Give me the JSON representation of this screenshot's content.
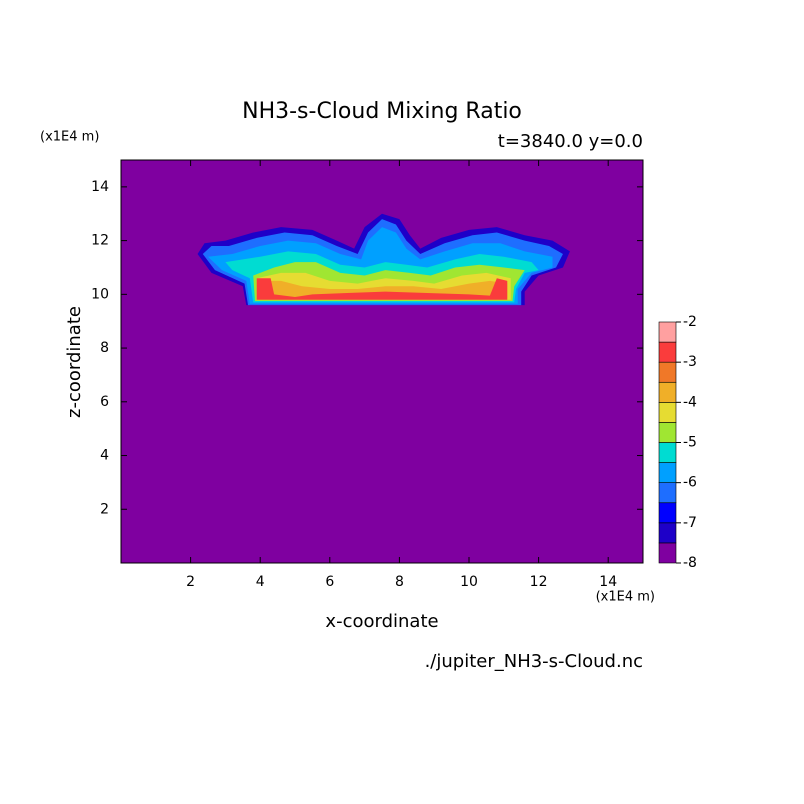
{
  "chart_data": {
    "type": "contour",
    "title": "NH3-s-Cloud Mixing Ratio",
    "subtitle": "t=3840.0 y=0.0",
    "y_unit": "(x1E4 m)",
    "x_unit": "(x1E4 m)",
    "x_label": "x-coordinate",
    "y_label": "z-coordinate",
    "footer": "./jupiter_NH3-s-Cloud.nc",
    "xlim": [
      0,
      15
    ],
    "ylim": [
      0,
      15
    ],
    "xticks": [
      2,
      4,
      6,
      8,
      10,
      12,
      14
    ],
    "yticks": [
      2,
      4,
      6,
      8,
      10,
      12,
      14
    ],
    "levels": [
      -8,
      -7.5,
      -7,
      -6.5,
      -6,
      -5.5,
      -5,
      -4.5,
      -4,
      -3.5,
      -3,
      -2.5,
      -2
    ],
    "colors": [
      "#7f00a0",
      "#1e00c8",
      "#0000ff",
      "#1e6eff",
      "#00a0ff",
      "#00dcd2",
      "#a0e632",
      "#e6dc32",
      "#f0af28",
      "#f07828",
      "#fa3c3c",
      "#ffa0a0"
    ],
    "colorbar_ticks": [
      -8,
      -7,
      -6,
      -5,
      -4,
      -3,
      -2
    ],
    "contours": [
      {
        "level": -7.5,
        "x": [
          3.6,
          3.5,
          2.6,
          2.2,
          2.4,
          3.0,
          3.8,
          4.6,
          5.5,
          6.2,
          6.7,
          7.0,
          7.5,
          8.0,
          8.3,
          8.6,
          9.2,
          10.0,
          10.8,
          11.6,
          12.4,
          12.9,
          12.7,
          12.0,
          11.6,
          11.6
        ],
        "z": [
          9.6,
          10.3,
          10.8,
          11.5,
          11.9,
          12.0,
          12.3,
          12.5,
          12.4,
          12.0,
          11.7,
          12.5,
          13.0,
          12.8,
          12.2,
          11.7,
          12.1,
          12.4,
          12.5,
          12.2,
          12.0,
          11.6,
          11.0,
          10.7,
          10.1,
          9.6
        ]
      },
      {
        "level": -6.5,
        "x": [
          3.65,
          3.55,
          2.7,
          2.35,
          2.6,
          3.1,
          3.9,
          4.7,
          5.5,
          6.2,
          6.8,
          7.1,
          7.5,
          7.9,
          8.2,
          8.6,
          9.3,
          10.1,
          10.8,
          11.6,
          12.3,
          12.7,
          12.5,
          11.8,
          11.5,
          11.5
        ],
        "z": [
          9.6,
          10.4,
          10.9,
          11.5,
          11.8,
          11.8,
          12.1,
          12.3,
          12.2,
          11.8,
          11.5,
          12.3,
          12.8,
          12.6,
          12.0,
          11.5,
          11.9,
          12.2,
          12.3,
          12.0,
          11.8,
          11.5,
          11.0,
          10.7,
          10.1,
          9.6
        ]
      },
      {
        "level": -6,
        "x": [
          3.7,
          3.6,
          2.9,
          2.5,
          3.2,
          4.0,
          4.8,
          5.6,
          6.3,
          6.9,
          7.1,
          7.5,
          7.9,
          8.2,
          8.6,
          9.3,
          10.1,
          10.9,
          11.6,
          12.4,
          12.4,
          11.8,
          11.4,
          11.4
        ],
        "z": [
          9.65,
          10.5,
          10.9,
          11.4,
          11.5,
          11.8,
          12.0,
          11.9,
          11.5,
          11.3,
          12.0,
          12.5,
          12.3,
          11.7,
          11.3,
          11.6,
          11.9,
          11.9,
          11.6,
          11.4,
          11.0,
          10.8,
          10.2,
          9.65
        ]
      },
      {
        "level": -5.5,
        "x": [
          3.8,
          3.7,
          3.2,
          3.0,
          4.0,
          4.8,
          5.6,
          6.3,
          7.0,
          7.6,
          8.2,
          8.8,
          9.6,
          10.3,
          11.0,
          11.8,
          12.0,
          11.6,
          11.35,
          11.3
        ],
        "z": [
          9.7,
          10.6,
          10.9,
          11.2,
          11.4,
          11.6,
          11.5,
          11.1,
          11.0,
          11.2,
          11.1,
          11.0,
          11.3,
          11.5,
          11.4,
          11.2,
          10.9,
          10.8,
          10.2,
          9.7
        ]
      },
      {
        "level": -5,
        "x": [
          3.85,
          3.8,
          4.4,
          5.0,
          5.6,
          6.3,
          7.0,
          7.6,
          8.3,
          8.9,
          9.6,
          10.3,
          11.0,
          11.6,
          11.3,
          11.25
        ],
        "z": [
          9.75,
          10.7,
          11.0,
          11.2,
          11.2,
          10.8,
          10.7,
          10.9,
          10.8,
          10.7,
          11.0,
          11.1,
          11.0,
          10.9,
          10.3,
          9.75
        ]
      },
      {
        "level": -4.5,
        "x": [
          3.9,
          3.9,
          4.6,
          5.3,
          6.0,
          6.8,
          7.6,
          8.4,
          9.0,
          9.8,
          10.5,
          11.2,
          11.2
        ],
        "z": [
          9.8,
          10.6,
          10.8,
          10.8,
          10.5,
          10.4,
          10.6,
          10.5,
          10.4,
          10.7,
          10.8,
          10.6,
          9.8
        ]
      },
      {
        "level": -4,
        "x": [
          4.0,
          4.0,
          4.6,
          5.2,
          6.0,
          6.8,
          7.6,
          8.4,
          9.2,
          10.0,
          10.6,
          11.1,
          11.1
        ],
        "z": [
          9.85,
          10.5,
          10.5,
          10.3,
          10.2,
          10.2,
          10.3,
          10.3,
          10.2,
          10.4,
          10.5,
          10.4,
          9.85
        ]
      },
      {
        "level": -3,
        "x": [
          3.9,
          3.9,
          4.3,
          4.4,
          5.0,
          5.5,
          6.5,
          7.6,
          8.8,
          10.0,
          10.6,
          10.8,
          11.1,
          11.1
        ],
        "z": [
          9.8,
          10.6,
          10.6,
          10.0,
          9.9,
          10.0,
          10.05,
          10.1,
          10.05,
          10.0,
          9.95,
          10.6,
          10.5,
          9.8
        ]
      }
    ]
  }
}
